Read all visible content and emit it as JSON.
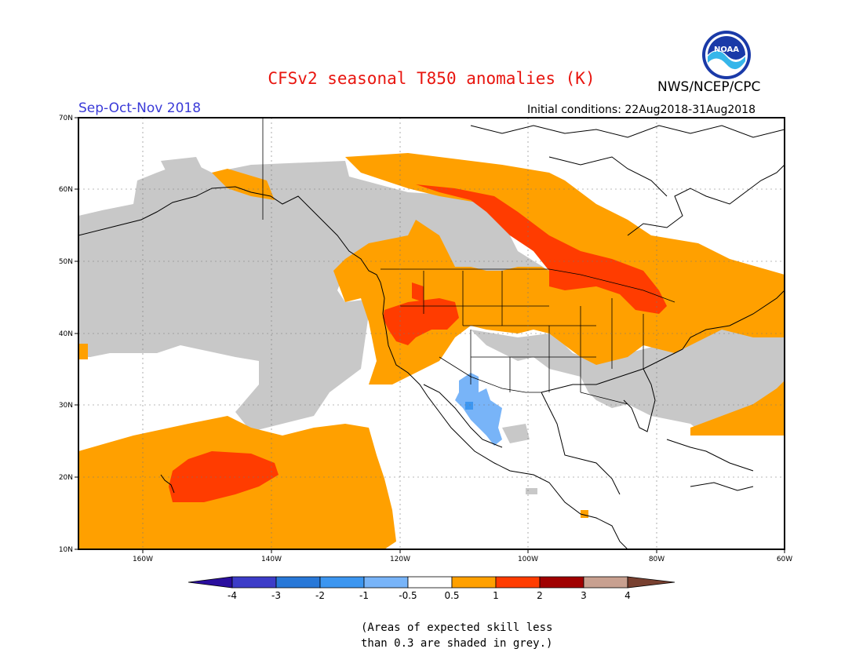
{
  "title": "CFSv2 seasonal T850 anomalies (K)",
  "agency": "NWS/NCEP/CPC",
  "period": "Sep-Oct-Nov 2018",
  "initial_conditions": "Initial conditions: 22Aug2018-31Aug2018",
  "logo_text": "NOAA",
  "note_line1": "(Areas of expected skill less",
  "note_line2": "than 0.3 are shaded in grey.)",
  "colors": {
    "title": "#e8150f",
    "period": "#3a3ad8",
    "grey_low_skill": "#c8c8c8",
    "orange": "#ffa000",
    "red_orange": "#ff3c00",
    "light_blue": "#78b4f8",
    "mid_blue": "#3c96f0"
  },
  "map": {
    "lon_labels": [
      "160W",
      "140W",
      "120W",
      "100W",
      "80W",
      "60W"
    ],
    "lat_labels": [
      "70N",
      "60N",
      "50N",
      "40N",
      "30N",
      "20N",
      "10N"
    ]
  },
  "colorbar": {
    "labels": [
      "-4",
      "-3",
      "-2",
      "-1",
      "-0.5",
      "0.5",
      "1",
      "2",
      "3",
      "4"
    ],
    "colors": [
      "#2a0e9e",
      "#3c3cc8",
      "#2878d8",
      "#3c96f0",
      "#78b4f8",
      "#ffffff",
      "#ffa000",
      "#ff3c00",
      "#a00000",
      "#c8a090",
      "#784030"
    ]
  }
}
